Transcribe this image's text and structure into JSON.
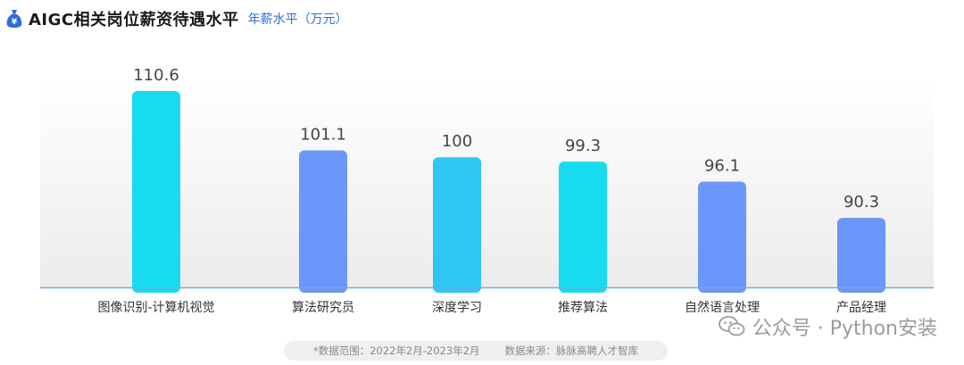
{
  "header": {
    "title": "AIGC相关岗位薪资待遇水平",
    "subtitle": "年薪水平（万元）",
    "icon": "money-bag-icon"
  },
  "chart_data": {
    "type": "bar",
    "categories": [
      "图像识别-计算机视觉",
      "算法研究员",
      "深度学习",
      "推荐算法",
      "自然语言处理",
      "产品经理"
    ],
    "values": [
      110.6,
      101.1,
      100,
      99.3,
      96.1,
      90.3
    ],
    "value_labels": [
      "110.6",
      "101.1",
      "100",
      "99.3",
      "96.1",
      "90.3"
    ],
    "bar_colors": [
      "#17dcef",
      "#6b97fb",
      "#2ec6f3",
      "#17dcef",
      "#6b97fb",
      "#6b97fb"
    ],
    "title": "AIGC相关岗位薪资待遇水平",
    "ylabel": "年薪水平（万元）",
    "xlabel": "",
    "grid": false,
    "legend": "none"
  },
  "watermark": {
    "text": "公众号 · Python安装",
    "icon": "wechat-icon"
  },
  "footer": {
    "range": "*数据范围：2022年2月-2023年2月",
    "source": "数据来源：脉脉高聘人才智库"
  }
}
